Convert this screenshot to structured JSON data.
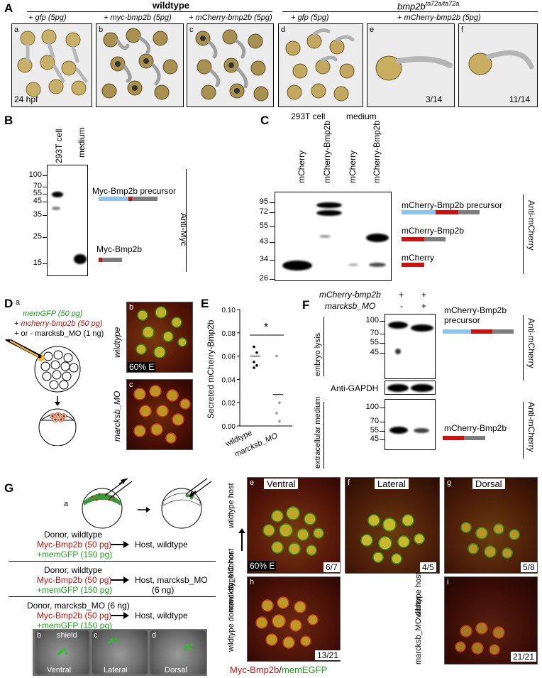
{
  "panel_A": {
    "label": "A",
    "group_wildtype": "wildtype",
    "group_mutant": "bmp2b",
    "group_mutant_sup": "ta72a/ta72a",
    "col_gfp": "+ gfp (5pg)",
    "col_myc": "+ myc-bmp2b (5pg)",
    "col_mch": "+ mCherry-bmp2b (5pg)",
    "col_gfp2": "+ gfp (5pg)",
    "col_mch2": "+ mCherry-bmp2b (5pg)",
    "sub_a": "a",
    "sub_b": "b",
    "sub_c": "c",
    "sub_d": "d",
    "sub_e": "e",
    "sub_f": "f",
    "stage": "24 hpf",
    "count_e": "3/14",
    "count_f": "11/14"
  },
  "panel_B": {
    "label": "B",
    "lane1": "293T cell",
    "lane2": "medium",
    "markers": [
      "100",
      "70",
      "55",
      "45",
      "35",
      "25",
      "15"
    ],
    "precursor": "Myc-Bmp2b precursor",
    "mature": "Myc-Bmp2b",
    "antibody": "Anti-Myc"
  },
  "panel_C": {
    "label": "C",
    "group1": "293T cell",
    "group2": "medium",
    "lanes": [
      "mCherry",
      "mCherry-Bmp2b",
      "mCherry",
      "mCherry-Bmp2b"
    ],
    "markers": [
      "95",
      "72",
      "55",
      "43",
      "34",
      "26"
    ],
    "precursor": "mCherry-Bmp2b precursor",
    "mature": "mCherry-Bmp2b",
    "mcherry": "mCherry",
    "antibody": "Anti-mCherry"
  },
  "panel_D": {
    "label": "D",
    "sub_a": "a",
    "line1": "memGFP (50 pg)",
    "line2_prefix": "+ ",
    "line2": "mcherry-bmp2b (50 pg)",
    "line3": "+ or - marcksb_MO (1 ng)",
    "sub_b": "b",
    "sub_c": "c",
    "row1": "wildtype",
    "row2": "marcksb_MO",
    "stage": "60% E"
  },
  "panel_E": {
    "label": "E",
    "ylabel": "Secreted mCherry-Bmp2b",
    "yticks": [
      "0.00",
      "0.02",
      "0.04",
      "0.06",
      "0.08",
      "0.10"
    ],
    "categories": [
      "wildtype",
      "marcksb_MO"
    ],
    "significance": "*"
  },
  "chart_data": {
    "type": "scatter",
    "ylabel": "Secreted mCherry-Bmp2b",
    "ylim": [
      0,
      0.1
    ],
    "categories": [
      "wildtype",
      "marcksb_MO"
    ],
    "series": [
      {
        "values": [
          [
            0.068,
            0.063,
            0.055,
            0.052,
            0.05
          ],
          [
            0.06,
            0.02,
            0.011,
            0.004
          ]
        ]
      }
    ],
    "means": [
      0.06,
      0.027
    ]
  },
  "panel_F": {
    "label": "F",
    "row1": "mCherry-bmp2b",
    "row2": "marcksb_MO",
    "signs_row1": [
      "+",
      "+"
    ],
    "signs_row2": [
      "-",
      "+"
    ],
    "markers_top": [
      "100",
      "70",
      "55",
      "45"
    ],
    "markers_bottom": [
      "100",
      "70",
      "55",
      "45"
    ],
    "precursor": "mCherry-Bmp2b precursor",
    "gapdh": "Anti-GAPDH",
    "mature": "mCherry-Bmp2b",
    "side_top": "embryo lysis",
    "side_bottom": "extracellular medium",
    "antibody": "Anti-mCherry"
  },
  "panel_G": {
    "label": "G",
    "sub_a": "a",
    "donor1": "Donor, wildtype",
    "donor2": "Donor, wildtype",
    "donor3": "Donor, marcksb_MO (6 ng)",
    "myc": "Myc-Bmp2b (50 pg)",
    "gfp": "+memGFP (150 pg)",
    "host1": "Host, wildtype",
    "host2": "Host, marcksb_MO",
    "host2b": "(6 ng)",
    "host3": "Host, wildtype",
    "sub_b": "b",
    "sub_c": "c",
    "sub_d": "d",
    "shield": "shield",
    "view_v": "Ventral",
    "view_l": "Lateral",
    "view_d": "Dorsal",
    "sub_e": "e",
    "sub_f": "f",
    "sub_g": "g",
    "sub_h": "h",
    "sub_i": "i",
    "head_v": "Ventral",
    "head_l": "Lateral",
    "head_d": "Dorsal",
    "stage": "60% E",
    "count_e": "6/7",
    "count_f": "4/5",
    "count_g": "5/8",
    "count_h": "13/21",
    "count_i": "21/21",
    "side_wt_host": "wildtype host",
    "side_wt_donor": "wildtype donor",
    "side_mo_host": "marcksb_MO host",
    "side_mo_donor": "marcksb_MO donor",
    "side_wt_host2": "wildtype host",
    "caption_red": "Myc-Bmp2b",
    "caption_sep": "/",
    "caption_green": "memEGFP"
  }
}
